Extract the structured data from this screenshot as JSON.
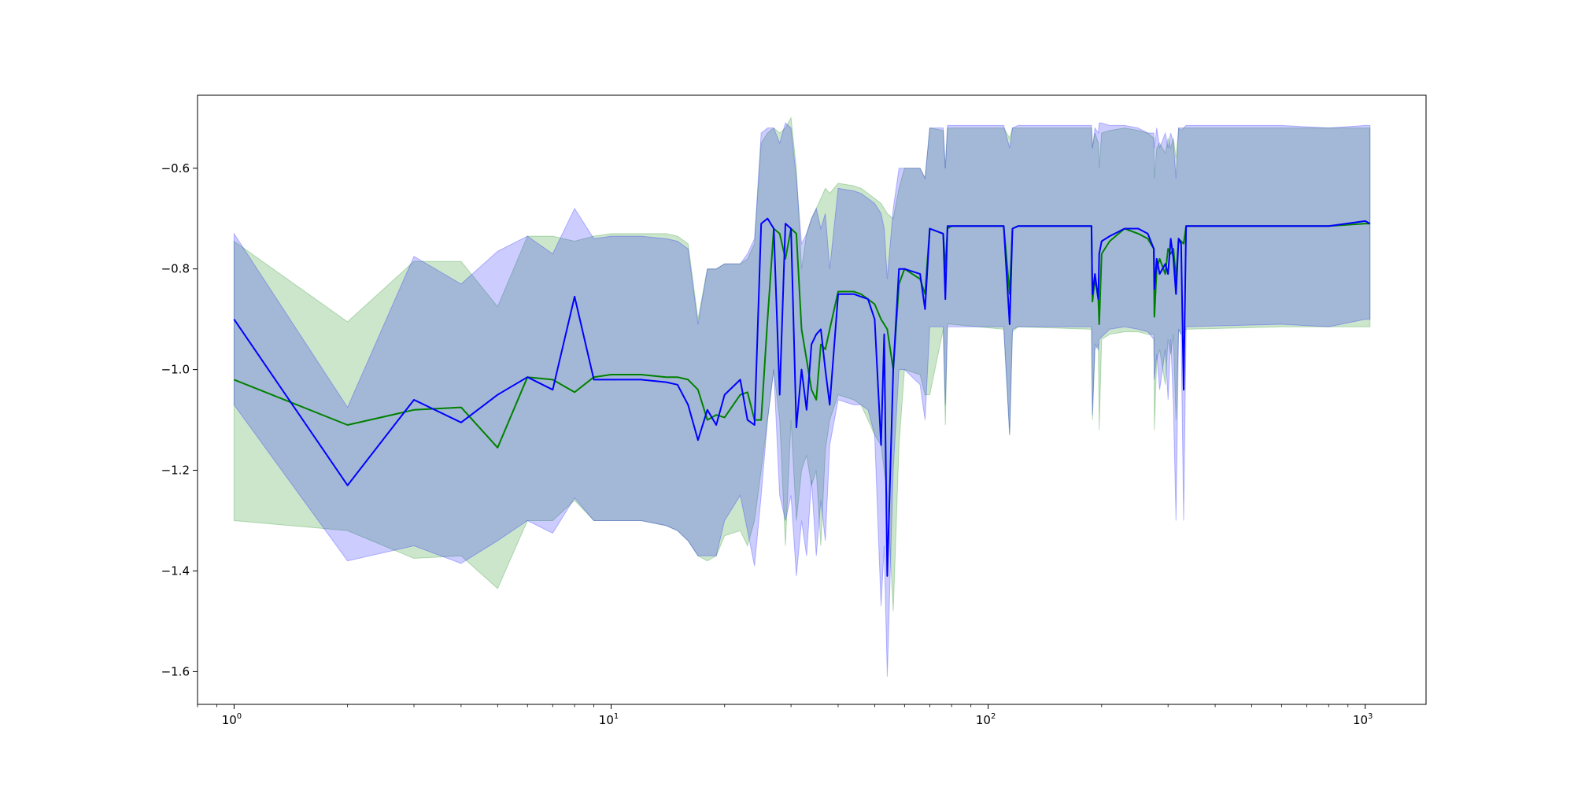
{
  "chart_data": {
    "type": "line",
    "x_scale": "log",
    "xlim": [
      0.8,
      1450
    ],
    "ylim": [
      -1.665,
      -0.455
    ],
    "grid": false,
    "legend": "none",
    "x_ticks": [
      {
        "value": 1,
        "base": "10",
        "exp": "0"
      },
      {
        "value": 10,
        "base": "10",
        "exp": "1"
      },
      {
        "value": 100,
        "base": "10",
        "exp": "2"
      },
      {
        "value": 1000,
        "base": "10",
        "exp": "3"
      }
    ],
    "y_ticks": [
      {
        "value": -0.6,
        "label": "−0.6"
      },
      {
        "value": -0.8,
        "label": "−0.8"
      },
      {
        "value": -1.0,
        "label": "−1.0"
      },
      {
        "value": -1.2,
        "label": "−1.2"
      },
      {
        "value": -1.4,
        "label": "−1.4"
      },
      {
        "value": -1.6,
        "label": "−1.6"
      }
    ],
    "series": [
      {
        "color": "#008000",
        "band_color": "#008000",
        "band_opacity": 0.2,
        "x": [
          1,
          2,
          3,
          4,
          5,
          6,
          7,
          8,
          9,
          10,
          12,
          14,
          15,
          16,
          17,
          18,
          19,
          20,
          22,
          23,
          24,
          25,
          26,
          27,
          28,
          29,
          30,
          31,
          32,
          33,
          34,
          35,
          36,
          37,
          38,
          40,
          44,
          46,
          48,
          50,
          52,
          54,
          56,
          58,
          60,
          66,
          68,
          70,
          76,
          77,
          78,
          80,
          110,
          114,
          116,
          120,
          188,
          189,
          192,
          196,
          197,
          200,
          210,
          230,
          250,
          265,
          275,
          276,
          280,
          285,
          295,
          300,
          305,
          310,
          315,
          320,
          325,
          330,
          335,
          600,
          800,
          1000,
          1030
        ],
        "mean": [
          -1.02,
          -1.11,
          -1.08,
          -1.075,
          -1.155,
          -1.015,
          -1.02,
          -1.045,
          -1.015,
          -1.01,
          -1.01,
          -1.015,
          -1.015,
          -1.02,
          -1.04,
          -1.1,
          -1.09,
          -1.095,
          -1.05,
          -1.045,
          -1.1,
          -1.1,
          -0.9,
          -0.72,
          -0.73,
          -0.78,
          -0.72,
          -0.73,
          -0.92,
          -0.98,
          -1.04,
          -1.06,
          -0.95,
          -0.96,
          -0.92,
          -0.845,
          -0.845,
          -0.85,
          -0.86,
          -0.87,
          -0.9,
          -0.92,
          -1.0,
          -0.83,
          -0.8,
          -0.82,
          -0.85,
          -0.72,
          -0.73,
          -0.8,
          -0.72,
          -0.715,
          -0.715,
          -0.85,
          -0.72,
          -0.715,
          -0.715,
          -0.865,
          -0.82,
          -0.86,
          -0.91,
          -0.77,
          -0.745,
          -0.72,
          -0.73,
          -0.74,
          -0.76,
          -0.895,
          -0.8,
          -0.78,
          -0.81,
          -0.76,
          -0.77,
          -0.76,
          -0.82,
          -0.74,
          -0.745,
          -0.75,
          -0.715,
          -0.715,
          -0.715,
          -0.71,
          -0.71
        ],
        "lower": [
          -1.3,
          -1.32,
          -1.375,
          -1.37,
          -1.435,
          -1.3,
          -1.3,
          -1.26,
          -1.3,
          -1.3,
          -1.3,
          -1.31,
          -1.32,
          -1.34,
          -1.37,
          -1.38,
          -1.37,
          -1.33,
          -1.32,
          -1.35,
          -1.3,
          -1.2,
          -1.1,
          -1.0,
          -1.1,
          -1.35,
          -1.1,
          -1.3,
          -1.2,
          -1.17,
          -1.23,
          -1.2,
          -1.35,
          -1.16,
          -1.1,
          -1.05,
          -1.06,
          -1.07,
          -1.1,
          -1.13,
          -1.15,
          -1.25,
          -1.48,
          -1.15,
          -1.0,
          -1.01,
          -1.05,
          -1.05,
          -0.92,
          -1.11,
          -0.91,
          -0.91,
          -0.92,
          -1.13,
          -0.925,
          -0.915,
          -0.92,
          -1.1,
          -0.96,
          -0.95,
          -1.12,
          -0.94,
          -0.93,
          -0.925,
          -0.925,
          -0.93,
          -0.93,
          -1.12,
          -0.98,
          -0.96,
          -1.03,
          -0.94,
          -0.97,
          -0.93,
          -1.1,
          -0.92,
          -0.93,
          -0.925,
          -0.92,
          -0.915,
          -0.915,
          -0.915,
          -0.915
        ],
        "upper": [
          -0.745,
          -0.905,
          -0.785,
          -0.785,
          -0.875,
          -0.735,
          -0.735,
          -0.745,
          -0.735,
          -0.73,
          -0.73,
          -0.73,
          -0.735,
          -0.75,
          -0.9,
          -0.8,
          -0.8,
          -0.79,
          -0.79,
          -0.78,
          -0.75,
          -0.55,
          -0.53,
          -0.52,
          -0.53,
          -0.52,
          -0.5,
          -0.6,
          -0.8,
          -0.73,
          -0.7,
          -0.68,
          -0.66,
          -0.64,
          -0.65,
          -0.63,
          -0.635,
          -0.64,
          -0.65,
          -0.66,
          -0.67,
          -0.69,
          -0.7,
          -0.64,
          -0.6,
          -0.6,
          -0.62,
          -0.52,
          -0.525,
          -0.6,
          -0.52,
          -0.52,
          -0.52,
          -0.54,
          -0.52,
          -0.52,
          -0.52,
          -0.56,
          -0.53,
          -0.55,
          -0.6,
          -0.53,
          -0.525,
          -0.52,
          -0.525,
          -0.53,
          -0.54,
          -0.62,
          -0.56,
          -0.55,
          -0.57,
          -0.54,
          -0.56,
          -0.54,
          -0.58,
          -0.52,
          -0.525,
          -0.52,
          -0.52,
          -0.52,
          -0.52,
          -0.52,
          -0.52
        ]
      },
      {
        "color": "#0000ff",
        "band_color": "#0000ff",
        "band_opacity": 0.2,
        "x": [
          1,
          2,
          3,
          4,
          5,
          6,
          7,
          8,
          9,
          10,
          12,
          14,
          15,
          16,
          17,
          18,
          19,
          20,
          22,
          23,
          24,
          25,
          26,
          27,
          28,
          29,
          30,
          31,
          32,
          33,
          34,
          35,
          36,
          37,
          38,
          40,
          44,
          46,
          48,
          50,
          52,
          53,
          54,
          56,
          58,
          60,
          66,
          68,
          70,
          76,
          77,
          78,
          80,
          110,
          114,
          116,
          120,
          188,
          189,
          192,
          196,
          197,
          200,
          210,
          230,
          250,
          265,
          275,
          276,
          280,
          285,
          295,
          300,
          305,
          310,
          315,
          320,
          325,
          330,
          335,
          600,
          800,
          1000,
          1030
        ],
        "mean": [
          -0.9,
          -1.23,
          -1.06,
          -1.105,
          -1.05,
          -1.015,
          -1.04,
          -0.855,
          -1.02,
          -1.02,
          -1.02,
          -1.025,
          -1.03,
          -1.07,
          -1.14,
          -1.08,
          -1.11,
          -1.05,
          -1.02,
          -1.1,
          -1.11,
          -0.71,
          -0.7,
          -0.72,
          -1.05,
          -0.71,
          -0.72,
          -1.115,
          -1.0,
          -1.08,
          -0.95,
          -0.93,
          -0.92,
          -1.0,
          -1.07,
          -0.85,
          -0.85,
          -0.855,
          -0.86,
          -0.9,
          -1.15,
          -0.93,
          -1.41,
          -1.0,
          -0.8,
          -0.8,
          -0.81,
          -0.88,
          -0.72,
          -0.73,
          -0.86,
          -0.715,
          -0.715,
          -0.715,
          -0.91,
          -0.72,
          -0.715,
          -0.715,
          -0.85,
          -0.81,
          -0.86,
          -0.77,
          -0.745,
          -0.735,
          -0.72,
          -0.72,
          -0.73,
          -0.76,
          -0.84,
          -0.78,
          -0.81,
          -0.79,
          -0.81,
          -0.74,
          -0.78,
          -0.85,
          -0.74,
          -0.75,
          -1.04,
          -0.715,
          -0.715,
          -0.715,
          -0.705,
          -0.71
        ],
        "lower": [
          -1.07,
          -1.38,
          -1.35,
          -1.385,
          -1.34,
          -1.3,
          -1.325,
          -1.255,
          -1.3,
          -1.3,
          -1.3,
          -1.31,
          -1.32,
          -1.34,
          -1.37,
          -1.37,
          -1.37,
          -1.3,
          -1.25,
          -1.32,
          -1.39,
          -1.25,
          -1.1,
          -1.0,
          -1.25,
          -1.3,
          -1.25,
          -1.41,
          -1.3,
          -1.37,
          -1.22,
          -1.37,
          -1.26,
          -1.34,
          -1.15,
          -1.06,
          -1.07,
          -1.07,
          -1.08,
          -1.13,
          -1.47,
          -1.35,
          -1.61,
          -1.2,
          -1.0,
          -1.0,
          -1.03,
          -1.1,
          -0.915,
          -0.915,
          -1.07,
          -0.915,
          -0.915,
          -0.915,
          -1.13,
          -0.92,
          -0.915,
          -0.915,
          -1.09,
          -0.95,
          -0.96,
          -0.94,
          -0.935,
          -0.92,
          -0.915,
          -0.92,
          -0.925,
          -0.94,
          -1.02,
          -0.97,
          -1.04,
          -0.96,
          -1.06,
          -0.94,
          -1.07,
          -1.3,
          -0.92,
          -0.93,
          -1.3,
          -0.915,
          -0.91,
          -0.915,
          -0.9,
          -0.9
        ],
        "upper": [
          -0.73,
          -1.075,
          -0.775,
          -0.83,
          -0.765,
          -0.735,
          -0.77,
          -0.68,
          -0.74,
          -0.735,
          -0.735,
          -0.74,
          -0.745,
          -0.76,
          -0.91,
          -0.8,
          -0.8,
          -0.79,
          -0.79,
          -0.77,
          -0.74,
          -0.53,
          -0.52,
          -0.52,
          -0.55,
          -0.51,
          -0.52,
          -0.62,
          -0.75,
          -0.73,
          -0.7,
          -0.68,
          -0.72,
          -0.69,
          -0.8,
          -0.64,
          -0.645,
          -0.65,
          -0.66,
          -0.67,
          -0.69,
          -0.72,
          -0.82,
          -0.68,
          -0.6,
          -0.6,
          -0.6,
          -0.62,
          -0.52,
          -0.52,
          -0.6,
          -0.515,
          -0.515,
          -0.515,
          -0.56,
          -0.52,
          -0.515,
          -0.515,
          -0.56,
          -0.52,
          -0.53,
          -0.51,
          -0.51,
          -0.515,
          -0.515,
          -0.52,
          -0.53,
          -0.53,
          -0.56,
          -0.52,
          -0.56,
          -0.53,
          -0.56,
          -0.53,
          -0.55,
          -0.62,
          -0.52,
          -0.52,
          -0.52,
          -0.515,
          -0.515,
          -0.52,
          -0.515,
          -0.515
        ]
      }
    ]
  }
}
